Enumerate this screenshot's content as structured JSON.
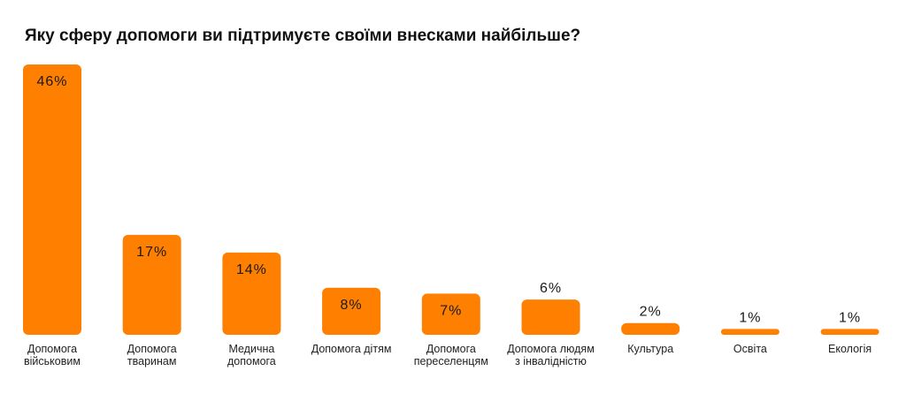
{
  "chart_data": {
    "type": "bar",
    "title": "Яку сферу допомоги ви підтримуєте своїми внесками найбільше?",
    "categories": [
      "Допомога військовим",
      "Допомога тваринам",
      "Медична допомога",
      "Допомога дітям",
      "Допомога переселенцям",
      "Допомога людям з інвалідністю",
      "Культура",
      "Освіта",
      "Екологія"
    ],
    "values": [
      46,
      17,
      14,
      8,
      7,
      6,
      2,
      1,
      1
    ],
    "value_labels": [
      "46%",
      "17%",
      "14%",
      "8%",
      "7%",
      "6%",
      "2%",
      "1%",
      "1%"
    ],
    "color": "#ff7f00"
  }
}
